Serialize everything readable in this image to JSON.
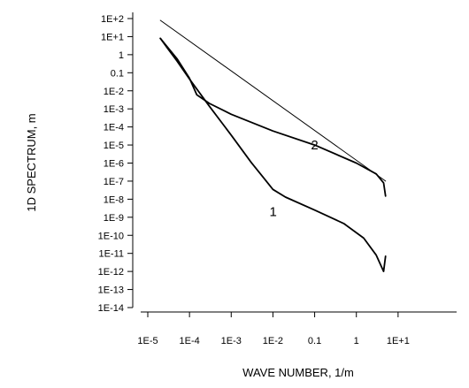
{
  "chart_data": {
    "type": "line",
    "title": "",
    "xlabel": "WAVE NUMBER, 1/m",
    "ylabel": "1D SPECTRUM, m",
    "x_scale": "log",
    "y_scale": "log",
    "xlim": [
      1e-05,
      100
    ],
    "ylim": [
      1e-14,
      100
    ],
    "grid": false,
    "legend": "none",
    "x_ticks": [
      {
        "value": 1e-05,
        "label": "1E-5"
      },
      {
        "value": 0.0001,
        "label": "1E-4"
      },
      {
        "value": 0.001,
        "label": "1E-3"
      },
      {
        "value": 0.01,
        "label": "1E-2"
      },
      {
        "value": 0.1,
        "label": "0.1"
      },
      {
        "value": 1,
        "label": "1"
      },
      {
        "value": 10,
        "label": "1E+1"
      }
    ],
    "y_ticks": [
      {
        "value": 100,
        "label": "1E+2"
      },
      {
        "value": 10,
        "label": "1E+1"
      },
      {
        "value": 1,
        "label": "1"
      },
      {
        "value": 0.1,
        "label": "0.1"
      },
      {
        "value": 0.01,
        "label": "1E-2"
      },
      {
        "value": 0.001,
        "label": "1E-3"
      },
      {
        "value": 0.0001,
        "label": "1E-4"
      },
      {
        "value": 1e-05,
        "label": "1E-5"
      },
      {
        "value": 1e-06,
        "label": "1E-6"
      },
      {
        "value": 1e-07,
        "label": "1E-7"
      },
      {
        "value": 1e-08,
        "label": "1E-8"
      },
      {
        "value": 1e-09,
        "label": "1E-9"
      },
      {
        "value": 1e-10,
        "label": "1E-10"
      },
      {
        "value": 1e-11,
        "label": "1E-11"
      },
      {
        "value": 1e-12,
        "label": "1E-12"
      },
      {
        "value": 1e-13,
        "label": "1E-13"
      },
      {
        "value": 1e-14,
        "label": "1E-14"
      }
    ],
    "series": [
      {
        "label": "1",
        "label_position": {
          "x": 0.0101,
          "y": 2e-09
        },
        "points": [
          {
            "x": 2e-05,
            "y": 8
          },
          {
            "x": 3e-05,
            "y": 2.2
          },
          {
            "x": 5e-05,
            "y": 0.45
          },
          {
            "x": 0.0001,
            "y": 0.045
          },
          {
            "x": 0.0003,
            "y": 0.0014
          },
          {
            "x": 0.001,
            "y": 3.5e-05
          },
          {
            "x": 0.003,
            "y": 1.1e-06
          },
          {
            "x": 0.006,
            "y": 1.5e-07
          },
          {
            "x": 0.01,
            "y": 3.5e-08
          },
          {
            "x": 0.02,
            "y": 1.3e-08
          },
          {
            "x": 0.1,
            "y": 2.5e-09
          },
          {
            "x": 0.5,
            "y": 4.5e-10
          },
          {
            "x": 1.5,
            "y": 7e-11
          },
          {
            "x": 3.0,
            "y": 8e-12
          },
          {
            "x": 4.5,
            "y": 1e-12
          },
          {
            "x": 5.0,
            "y": 7e-12
          }
        ]
      },
      {
        "label": "2",
        "label_position": {
          "x": 0.1,
          "y": 1e-05
        },
        "points": [
          {
            "x": 2e-05,
            "y": 8
          },
          {
            "x": 5e-05,
            "y": 0.6
          },
          {
            "x": 0.0001,
            "y": 0.05
          },
          {
            "x": 0.00015,
            "y": 0.006
          },
          {
            "x": 0.0003,
            "y": 0.002
          },
          {
            "x": 0.001,
            "y": 0.0005
          },
          {
            "x": 0.01,
            "y": 6e-05
          },
          {
            "x": 0.1,
            "y": 1e-05
          },
          {
            "x": 1.0,
            "y": 1e-06
          },
          {
            "x": 3.0,
            "y": 2.5e-07
          },
          {
            "x": 4.5,
            "y": 8e-08
          },
          {
            "x": 5.0,
            "y": 1.5e-08
          }
        ]
      },
      {
        "label": "",
        "points": [
          {
            "x": 2e-05,
            "y": 80
          },
          {
            "x": 5.0,
            "y": 1e-07
          }
        ]
      }
    ]
  }
}
